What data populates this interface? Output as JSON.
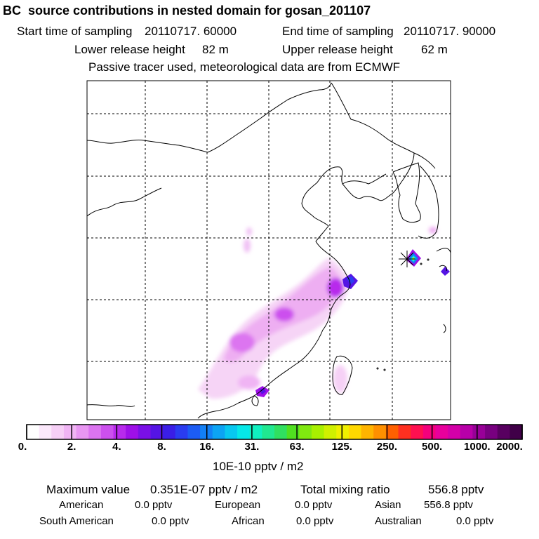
{
  "header": {
    "title": "BC  source contributions in nested domain for gosan_201107",
    "start_label": "Start time of sampling",
    "start_value": "20110717. 60000",
    "end_label": "End time of sampling",
    "end_value": "20110717. 90000",
    "lower_label": "Lower release height",
    "lower_value": "82 m",
    "upper_label": "Upper release height",
    "upper_value": "62 m",
    "note": "Passive tracer used, meteorological data are from ECMWF"
  },
  "chart_data": {
    "type": "heatmap",
    "title": "BC  source contributions in nested domain for gosan_201107",
    "colorbar": {
      "tick_labels": [
        "0.",
        "2.",
        "4.",
        "8.",
        "16.",
        "31.",
        "63.",
        "125.",
        "250.",
        "500.",
        "1000.",
        "2000."
      ],
      "unit": "10E-10 pptv / m2",
      "colors": [
        "#ffffff",
        "#fbe8fb",
        "#f6cff6",
        "#f0b4f4",
        "#e896f2",
        "#dc74f0",
        "#cc50ee",
        "#b82aec",
        "#9e10e8",
        "#7a10e6",
        "#5514e4",
        "#3a1ee6",
        "#2a3cf0",
        "#1c5cf4",
        "#1280f6",
        "#0ca4f4",
        "#08c8f0",
        "#06e8e8",
        "#10f0c0",
        "#20e890",
        "#30e060",
        "#50e020",
        "#80e810",
        "#a8f000",
        "#d0f000",
        "#f0f000",
        "#ffd800",
        "#ffb400",
        "#ff9000",
        "#ff6000",
        "#ff3020",
        "#ff1050",
        "#f4007c",
        "#e8009c",
        "#d400a8",
        "#b800a8",
        "#980098",
        "#780080",
        "#580060",
        "#400048"
      ],
      "grid": "dashed lat/lon lines"
    }
  },
  "footer": {
    "max_label": "Maximum value",
    "max_value": "0.351E-07 pptv / m2",
    "total_label": "Total mixing ratio",
    "total_value": "556.8 pptv",
    "regions": [
      {
        "name": "American",
        "value": "0.0 pptv"
      },
      {
        "name": "European",
        "value": "0.0 pptv"
      },
      {
        "name": "Asian",
        "value": "556.8 pptv"
      },
      {
        "name": "South American",
        "value": "0.0 pptv"
      },
      {
        "name": "African",
        "value": "0.0 pptv"
      },
      {
        "name": "Australian",
        "value": "0.0 pptv"
      }
    ]
  }
}
